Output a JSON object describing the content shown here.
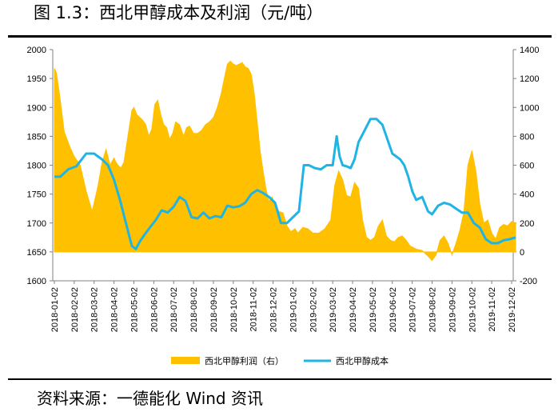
{
  "title": "图 1.3：西北甲醇成本及利润（元/吨）",
  "source": "资料来源：一德能化  Wind 资讯",
  "colors": {
    "area": "#FFC000",
    "line": "#1FB4E3",
    "axis": "#000000"
  },
  "chart_data": {
    "type": "area+line",
    "title": "西北甲醇成本及利润（元/吨）",
    "left_axis": {
      "label": "西北甲醇成本",
      "ylim": [
        1600,
        2000
      ],
      "ticks": [
        "1600",
        "1650",
        "1700",
        "1750",
        "1800",
        "1850",
        "1900",
        "1950",
        "2000"
      ]
    },
    "right_axis": {
      "label": "西北甲醇利润（右）",
      "ylim": [
        -200,
        1400
      ],
      "ticks": [
        "-200",
        "0",
        "200",
        "400",
        "600",
        "800",
        "1000",
        "1200",
        "1400"
      ]
    },
    "x_ticks": [
      "2018-01-02",
      "2018-02-02",
      "2018-03-02",
      "2018-04-02",
      "2018-05-02",
      "2018-06-02",
      "2018-07-02",
      "2018-08-02",
      "2018-09-02",
      "2018-10-02",
      "2018-11-02",
      "2018-12-02",
      "2019-01-02",
      "2019-02-02",
      "2019-03-02",
      "2019-04-02",
      "2019-05-02",
      "2019-06-02",
      "2019-07-02",
      "2019-08-02",
      "2019-09-02",
      "2019-10-02",
      "2019-11-02",
      "2019-12-02"
    ],
    "legend": [
      "西北甲醇利润（右）",
      "西北甲醇成本"
    ],
    "series": [
      {
        "name": "西北甲醇利润（右）",
        "axis": "right",
        "kind": "area",
        "t": [
          0,
          0.1,
          0.25,
          0.5,
          0.8,
          1.0,
          1.3,
          1.6,
          1.9,
          2.2,
          2.4,
          2.6,
          2.8,
          3.0,
          3.1,
          3.2,
          3.35,
          3.5,
          3.7,
          3.9,
          4.0,
          4.15,
          4.3,
          4.45,
          4.6,
          4.75,
          4.9,
          5.05,
          5.2,
          5.35,
          5.5,
          5.65,
          5.8,
          5.95,
          6.1,
          6.3,
          6.5,
          6.65,
          6.8,
          7.0,
          7.2,
          7.4,
          7.6,
          7.8,
          8.0,
          8.2,
          8.4,
          8.55,
          8.7,
          8.85,
          9.0,
          9.15,
          9.3,
          9.45,
          9.6,
          9.75,
          9.9,
          10.05,
          10.2,
          10.35,
          10.5,
          10.65,
          10.8,
          10.95,
          11.1,
          11.3,
          11.5,
          11.7,
          11.9,
          12.1,
          12.25,
          12.5,
          12.75,
          13.0,
          13.3,
          13.6,
          13.9,
          14.1,
          14.3,
          14.5,
          14.7,
          14.9,
          15.1,
          15.3,
          15.5,
          15.7,
          15.9,
          16.1,
          16.3,
          16.5,
          16.7,
          16.9,
          17.1,
          17.3,
          17.5,
          17.7,
          17.9,
          18.2,
          18.5,
          18.8,
          19.0,
          19.2,
          19.4,
          19.6,
          19.8,
          20.0,
          20.2,
          20.4,
          20.6,
          20.8,
          21.0,
          21.2,
          21.4,
          21.6,
          21.8,
          22.0,
          22.2,
          22.4,
          22.6,
          22.8,
          23.0,
          23.2
        ],
        "values": [
          1270,
          1240,
          1100,
          830,
          720,
          660,
          600,
          420,
          280,
          460,
          620,
          710,
          600,
          650,
          620,
          600,
          580,
          620,
          800,
          980,
          1000,
          950,
          930,
          910,
          880,
          800,
          850,
          1020,
          1050,
          950,
          880,
          860,
          780,
          820,
          900,
          880,
          800,
          860,
          870,
          820,
          820,
          840,
          880,
          900,
          930,
          1000,
          1100,
          1200,
          1300,
          1320,
          1300,
          1290,
          1300,
          1310,
          1280,
          1270,
          1230,
          1100,
          900,
          700,
          560,
          430,
          350,
          380,
          320,
          280,
          270,
          180,
          140,
          160,
          130,
          170,
          160,
          130,
          130,
          160,
          220,
          460,
          560,
          500,
          390,
          380,
          480,
          440,
          220,
          100,
          80,
          100,
          180,
          220,
          110,
          80,
          70,
          100,
          110,
          80,
          40,
          20,
          10,
          -30,
          -60,
          -20,
          80,
          110,
          60,
          -20,
          60,
          150,
          280,
          600,
          700,
          560,
          330,
          200,
          220,
          130,
          90,
          170,
          190,
          180,
          210,
          200
        ]
      },
      {
        "name": "西北甲醇成本",
        "axis": "left",
        "kind": "line",
        "t": [
          0,
          0.3,
          0.7,
          1.1,
          1.6,
          2.0,
          2.4,
          2.7,
          3.0,
          3.3,
          3.6,
          3.9,
          4.1,
          4.3,
          4.5,
          4.8,
          5.1,
          5.4,
          5.7,
          6.0,
          6.3,
          6.6,
          6.9,
          7.2,
          7.5,
          7.8,
          8.1,
          8.4,
          8.7,
          9.0,
          9.3,
          9.6,
          9.9,
          10.2,
          10.5,
          10.8,
          11.1,
          11.4,
          11.7,
          12.0,
          12.3,
          12.55,
          12.8,
          13.1,
          13.4,
          13.7,
          14.0,
          14.2,
          14.35,
          14.5,
          14.7,
          14.9,
          15.1,
          15.3,
          15.6,
          15.9,
          16.2,
          16.5,
          16.8,
          17.0,
          17.2,
          17.4,
          17.6,
          17.8,
          18.0,
          18.2,
          18.5,
          18.8,
          19.0,
          19.3,
          19.6,
          19.9,
          20.2,
          20.5,
          20.8,
          21.1,
          21.4,
          21.7,
          22.0,
          22.3,
          22.6,
          22.9,
          23.2
        ],
        "values": [
          1780,
          1780,
          1793,
          1798,
          1820,
          1820,
          1810,
          1800,
          1775,
          1740,
          1700,
          1660,
          1655,
          1668,
          1678,
          1692,
          1705,
          1722,
          1718,
          1728,
          1745,
          1738,
          1710,
          1708,
          1718,
          1708,
          1712,
          1710,
          1730,
          1727,
          1729,
          1735,
          1750,
          1757,
          1752,
          1745,
          1735,
          1700,
          1700,
          1710,
          1720,
          1800,
          1800,
          1795,
          1793,
          1800,
          1800,
          1850,
          1815,
          1800,
          1798,
          1795,
          1810,
          1840,
          1860,
          1880,
          1880,
          1870,
          1840,
          1820,
          1815,
          1810,
          1800,
          1780,
          1755,
          1740,
          1745,
          1720,
          1715,
          1730,
          1735,
          1732,
          1725,
          1718,
          1718,
          1700,
          1692,
          1672,
          1665,
          1665,
          1670,
          1672,
          1675
        ]
      }
    ]
  }
}
